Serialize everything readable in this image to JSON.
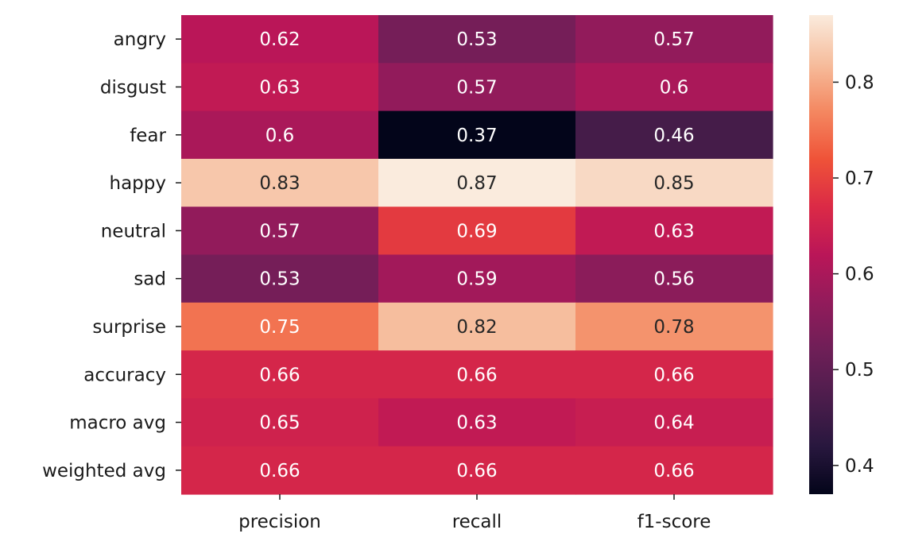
{
  "chart_data": {
    "type": "heatmap",
    "title": "",
    "xlabel": "",
    "ylabel": "",
    "x_categories": [
      "precision",
      "recall",
      "f1-score"
    ],
    "y_categories": [
      "angry",
      "disgust",
      "fear",
      "happy",
      "neutral",
      "sad",
      "surprise",
      "accuracy",
      "macro avg",
      "weighted avg"
    ],
    "values": [
      [
        0.62,
        0.53,
        0.57
      ],
      [
        0.63,
        0.57,
        0.6
      ],
      [
        0.6,
        0.37,
        0.46
      ],
      [
        0.83,
        0.87,
        0.85
      ],
      [
        0.57,
        0.69,
        0.63
      ],
      [
        0.53,
        0.59,
        0.56
      ],
      [
        0.75,
        0.82,
        0.78
      ],
      [
        0.66,
        0.66,
        0.66
      ],
      [
        0.65,
        0.63,
        0.64
      ],
      [
        0.66,
        0.66,
        0.66
      ]
    ],
    "annotations": [
      [
        "0.62",
        "0.53",
        "0.57"
      ],
      [
        "0.63",
        "0.57",
        "0.6"
      ],
      [
        "0.6",
        "0.37",
        "0.46"
      ],
      [
        "0.83",
        "0.87",
        "0.85"
      ],
      [
        "0.57",
        "0.69",
        "0.63"
      ],
      [
        "0.53",
        "0.59",
        "0.56"
      ],
      [
        "0.75",
        "0.82",
        "0.78"
      ],
      [
        "0.66",
        "0.66",
        "0.66"
      ],
      [
        "0.65",
        "0.63",
        "0.64"
      ],
      [
        "0.66",
        "0.66",
        "0.66"
      ]
    ],
    "colormap": "rocket",
    "colorbar": {
      "range": [
        0.37,
        0.87
      ],
      "ticks": [
        0.4,
        0.5,
        0.6,
        0.7,
        0.8
      ],
      "tick_labels": [
        "0.4",
        "0.5",
        "0.6",
        "0.7",
        "0.8"
      ],
      "placement": "right"
    },
    "annotation_colors": {
      "on_dark": "#ffffff",
      "on_light": "#262626"
    },
    "grid": false,
    "legend": "none"
  }
}
